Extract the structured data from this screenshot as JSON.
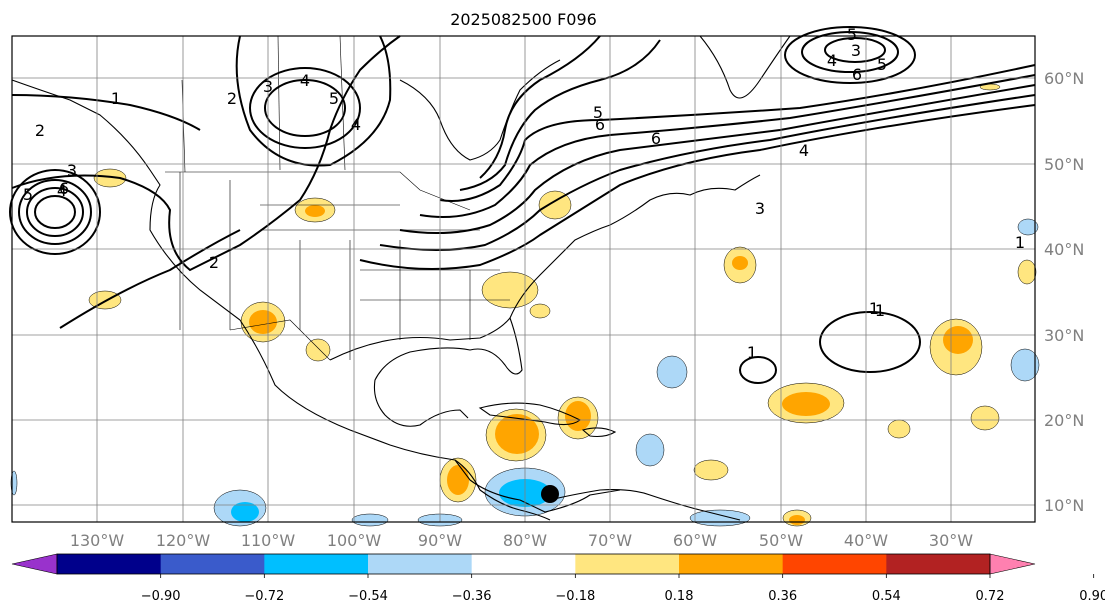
{
  "title": "2025082500 F096",
  "map": {
    "longitude_labels": [
      "130°W",
      "120°W",
      "110°W",
      "100°W",
      "90°W",
      "80°W",
      "70°W",
      "60°W",
      "50°W",
      "40°W",
      "30°W"
    ],
    "latitude_labels": [
      "60°N",
      "50°N",
      "40°N",
      "30°N",
      "20°N",
      "10°N"
    ],
    "grid": true,
    "contour_line_labels": [
      "1",
      "2",
      "3",
      "4",
      "5",
      "6",
      "2",
      "3",
      "4",
      "5",
      "4",
      "6",
      "5",
      "4",
      "3",
      "6",
      "5",
      "1",
      "1",
      "2",
      "1",
      "1",
      "3",
      "4",
      "5",
      "6"
    ],
    "marker": "filled black circle over the southwestern Caribbean"
  },
  "colorbar": {
    "tick_labels": [
      "−0.90",
      "−0.72",
      "−0.54",
      "−0.36",
      "−0.18",
      "0.18",
      "0.36",
      "0.54",
      "0.72",
      "0.90"
    ],
    "colors": [
      "#9932cc",
      "#00008b",
      "#3a5bcb",
      "#00bfff",
      "#add8f7",
      "#ffffff",
      "#ffe680",
      "#ffa500",
      "#ff4500",
      "#b22222",
      "#ff80b0"
    ],
    "extend": "both"
  }
}
